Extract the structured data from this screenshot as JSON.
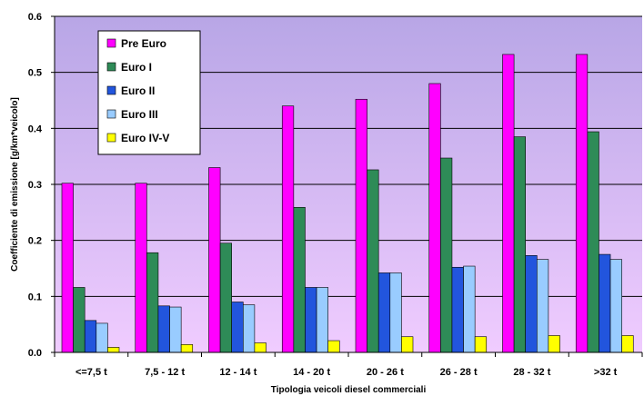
{
  "chart_data": {
    "type": "bar",
    "title": "",
    "xlabel": "Tipologia veicoli diesel commerciali",
    "ylabel": "Coefficiente di emissione [g/km*veicolo]",
    "ylim": [
      0,
      0.6
    ],
    "yticks": [
      "0.0",
      "0.1",
      "0.2",
      "0.3",
      "0.4",
      "0.5",
      "0.6"
    ],
    "grid": true,
    "legend_position": "top-left",
    "categories": [
      "<=7,5 t",
      "7,5 - 12 t",
      "12 - 14 t",
      "14 - 20 t",
      "20 - 26 t",
      "26 - 28 t",
      "28 - 32 t",
      ">32 t"
    ],
    "series": [
      {
        "name": "Pre Euro",
        "color": "#ff00ff",
        "values": [
          0.302,
          0.302,
          0.33,
          0.44,
          0.452,
          0.48,
          0.532,
          0.532
        ]
      },
      {
        "name": "Euro I",
        "color": "#2e8b57",
        "values": [
          0.116,
          0.178,
          0.195,
          0.259,
          0.326,
          0.347,
          0.385,
          0.394
        ]
      },
      {
        "name": "Euro II",
        "color": "#2255dd",
        "values": [
          0.057,
          0.083,
          0.09,
          0.116,
          0.142,
          0.152,
          0.173,
          0.175
        ]
      },
      {
        "name": "Euro III",
        "color": "#99ccff",
        "values": [
          0.052,
          0.081,
          0.085,
          0.116,
          0.142,
          0.154,
          0.166,
          0.166
        ]
      },
      {
        "name": "Euro IV-V",
        "color": "#ffff00",
        "values": [
          0.009,
          0.014,
          0.017,
          0.021,
          0.028,
          0.028,
          0.03,
          0.03
        ]
      }
    ],
    "colors": {
      "plot_top": "#b8a6e6",
      "plot_bottom": "#f0ccff",
      "gridline": "#000000"
    }
  }
}
